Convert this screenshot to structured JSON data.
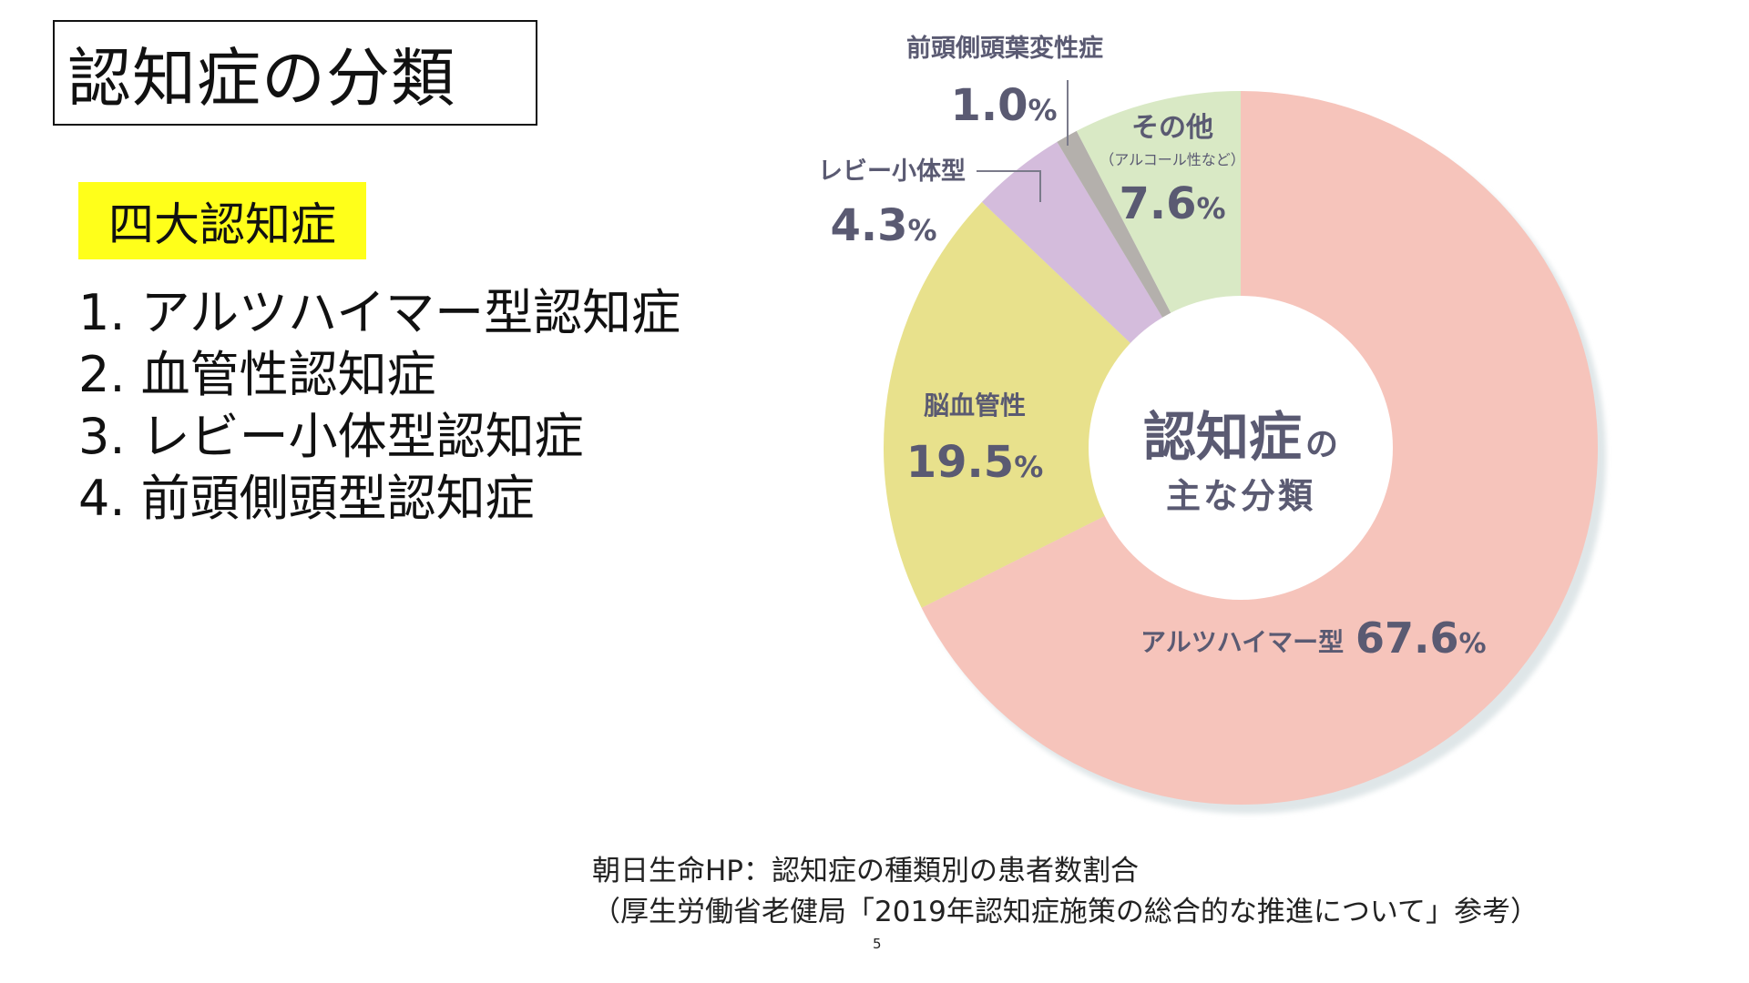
{
  "slide": {
    "title": "認知症の分類",
    "highlight_label": "四大認知症",
    "list": [
      "1. アルツハイマー型認知症",
      "2. 血管性認知症",
      "3. レビー小体型認知症",
      "4. 前頭側頭型認知症"
    ],
    "source_line1": "朝日生命HP：認知症の種類別の患者数割合",
    "source_line2": "（厚生労働省老健局「2019年認知症施策の総合的な推進について」参考）",
    "page_number": "5"
  },
  "chart_data": {
    "type": "pie",
    "variant": "donut",
    "center_title_main": "認知症",
    "center_title_particle": "の",
    "center_subtitle": "主な分類",
    "percent_sign": "%",
    "slices": [
      {
        "label": "アルツハイマー型",
        "value": 67.6,
        "value_text": "67.6",
        "color": "#f6c4bb"
      },
      {
        "label": "脳血管性",
        "value": 19.5,
        "value_text": "19.5",
        "color": "#e8e18c"
      },
      {
        "label": "レビー小体型",
        "value": 4.3,
        "value_text": "4.3",
        "color": "#d4bcdc"
      },
      {
        "label": "前頭側頭葉変性症",
        "value": 1.0,
        "value_text": "1.0",
        "color": "#b4b0ac"
      },
      {
        "label": "その他",
        "sublabel": "（アルコール性など）",
        "value": 7.6,
        "value_text": "7.6",
        "color": "#d9e9c5"
      }
    ],
    "label_color": "#5a5a72"
  }
}
